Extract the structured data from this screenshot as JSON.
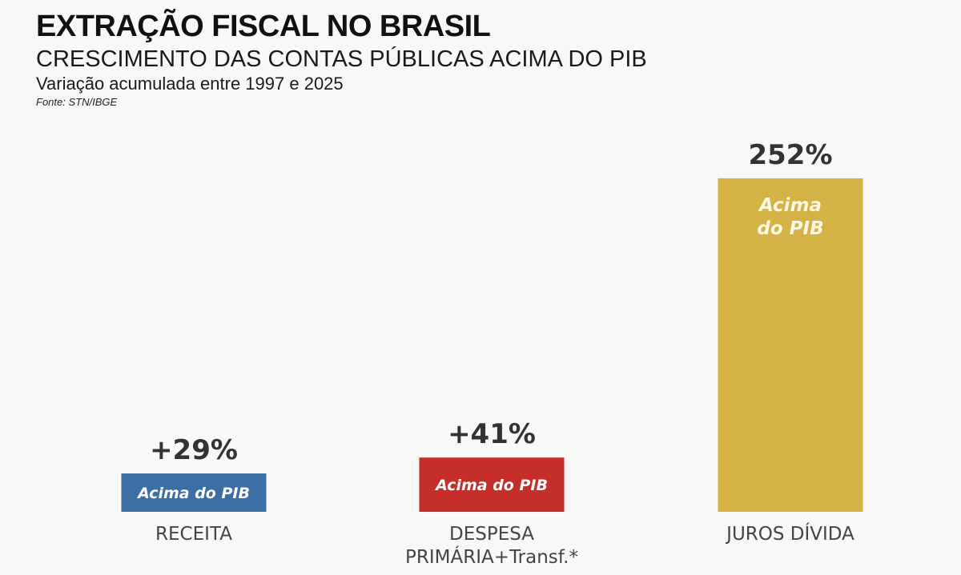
{
  "header": {
    "title": "EXTRAÇÃO FISCAL NO BRASIL",
    "subtitle": "CRESCIMENTO DAS CONTAS PÚBLICAS ACIMA DO PIB",
    "description": "Variação acumulada entre 1997 e 2025",
    "source": "Fonte: STN/IBGE"
  },
  "chart_data": {
    "type": "bar",
    "title": "EXTRAÇÃO FISCAL NO BRASIL",
    "subtitle": "CRESCIMENTO DAS CONTAS PÚBLICAS ACIMA DO PIB",
    "xlabel": "",
    "ylabel": "Variação acumulada entre 1997 e 2025 (%)",
    "ylim": [
      0,
      252
    ],
    "grid": false,
    "categories": [
      [
        "RECEITA"
      ],
      [
        "DESPESA",
        "PRIMÁRIA+Transf.*"
      ],
      [
        "JUROS DÍVIDA"
      ]
    ],
    "values": [
      29,
      41,
      252
    ],
    "value_labels": [
      "+29%",
      "+41%",
      "252%"
    ],
    "inner_labels": [
      [
        "Acima do PIB"
      ],
      [
        "Acima do PIB"
      ],
      [
        "Acima",
        "do PIB"
      ]
    ],
    "colors": [
      "#3a6ea5",
      "#c62e2a",
      "#d4b245"
    ]
  }
}
